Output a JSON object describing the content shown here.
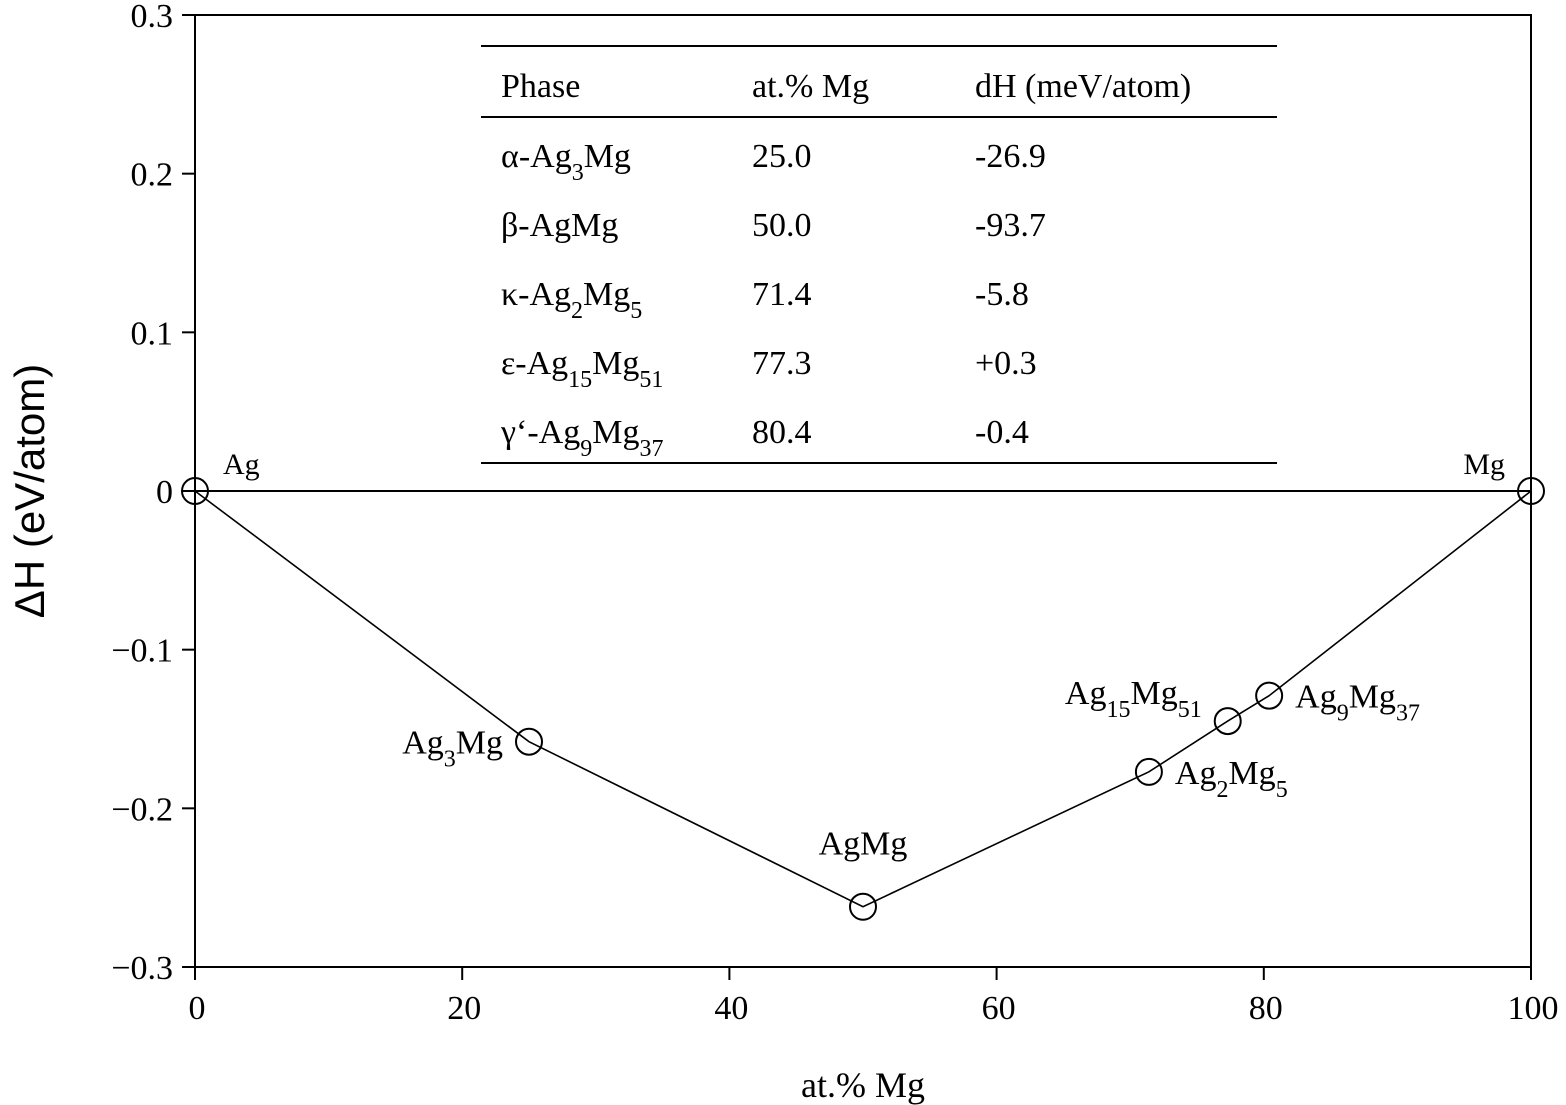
{
  "chart_data": {
    "type": "scatter",
    "xlabel": "at.% Mg",
    "ylabel": "ΔH (eV/atom)",
    "xlim": [
      0,
      100
    ],
    "ylim": [
      -0.3,
      0.3
    ],
    "xticks": [
      0,
      20,
      40,
      60,
      80,
      100
    ],
    "yticks": [
      0.3,
      0.2,
      0.1,
      0,
      -0.1,
      -0.2,
      -0.3
    ],
    "ytick_labels": [
      "0.3",
      "0.2",
      "0.1",
      "0",
      "−0.1",
      "−0.2",
      "−0.3"
    ],
    "grid": false,
    "zero_line": true,
    "points": [
      {
        "x": 0,
        "y": 0,
        "label": {
          "base": "Ag",
          "sub1": "",
          "mid": "",
          "sub2": ""
        },
        "label_pos": "upper-right"
      },
      {
        "x": 25,
        "y": -0.158,
        "label": {
          "base": "Ag",
          "sub1": "3",
          "mid": "Mg",
          "sub2": ""
        },
        "label_pos": "left"
      },
      {
        "x": 50,
        "y": -0.262,
        "label": {
          "base": "AgMg",
          "sub1": "",
          "mid": "",
          "sub2": ""
        },
        "label_pos": "above"
      },
      {
        "x": 71.4,
        "y": -0.177,
        "label": {
          "base": "Ag",
          "sub1": "2",
          "mid": "Mg",
          "sub2": "5"
        },
        "label_pos": "right"
      },
      {
        "x": 77.3,
        "y": -0.145,
        "label": {
          "base": "Ag",
          "sub1": "15",
          "mid": "Mg",
          "sub2": "51"
        },
        "label_pos": "upper-left"
      },
      {
        "x": 80.4,
        "y": -0.129,
        "label": {
          "base": "Ag",
          "sub1": "9",
          "mid": "Mg",
          "sub2": "37"
        },
        "label_pos": "right"
      },
      {
        "x": 100,
        "y": 0,
        "label": {
          "base": "Mg",
          "sub1": "",
          "mid": "",
          "sub2": ""
        },
        "label_pos": "upper-left"
      }
    ],
    "hull_line": [
      {
        "x": 0,
        "y": 0
      },
      {
        "x": 25,
        "y": -0.158
      },
      {
        "x": 50,
        "y": -0.262
      },
      {
        "x": 71.4,
        "y": -0.177
      },
      {
        "x": 77.3,
        "y": -0.145
      },
      {
        "x": 80.4,
        "y": -0.129
      },
      {
        "x": 100,
        "y": 0
      }
    ],
    "table": {
      "columns": [
        "Phase",
        "at.% Mg",
        "dH (meV/atom)"
      ],
      "rows": [
        {
          "phase": {
            "pre": "α-Ag",
            "sub1": "3",
            "mid": "Mg",
            "sub2": ""
          },
          "at_mg": "25.0",
          "dh": "-26.9"
        },
        {
          "phase": {
            "pre": "β-AgMg",
            "sub1": "",
            "mid": "",
            "sub2": ""
          },
          "at_mg": "50.0",
          "dh": "-93.7"
        },
        {
          "phase": {
            "pre": "κ-Ag",
            "sub1": "2",
            "mid": "Mg",
            "sub2": "5"
          },
          "at_mg": "71.4",
          "dh": "-5.8"
        },
        {
          "phase": {
            "pre": "ε-Ag",
            "sub1": "15",
            "mid": "Mg",
            "sub2": "51"
          },
          "at_mg": "77.3",
          "dh": "+0.3"
        },
        {
          "phase": {
            "pre": "γ‘-Ag",
            "sub1": "9",
            "mid": "Mg",
            "sub2": "37"
          },
          "at_mg": "80.4",
          "dh": "-0.4"
        }
      ]
    }
  },
  "colors": {
    "ink": "#000000",
    "background": "#ffffff"
  }
}
